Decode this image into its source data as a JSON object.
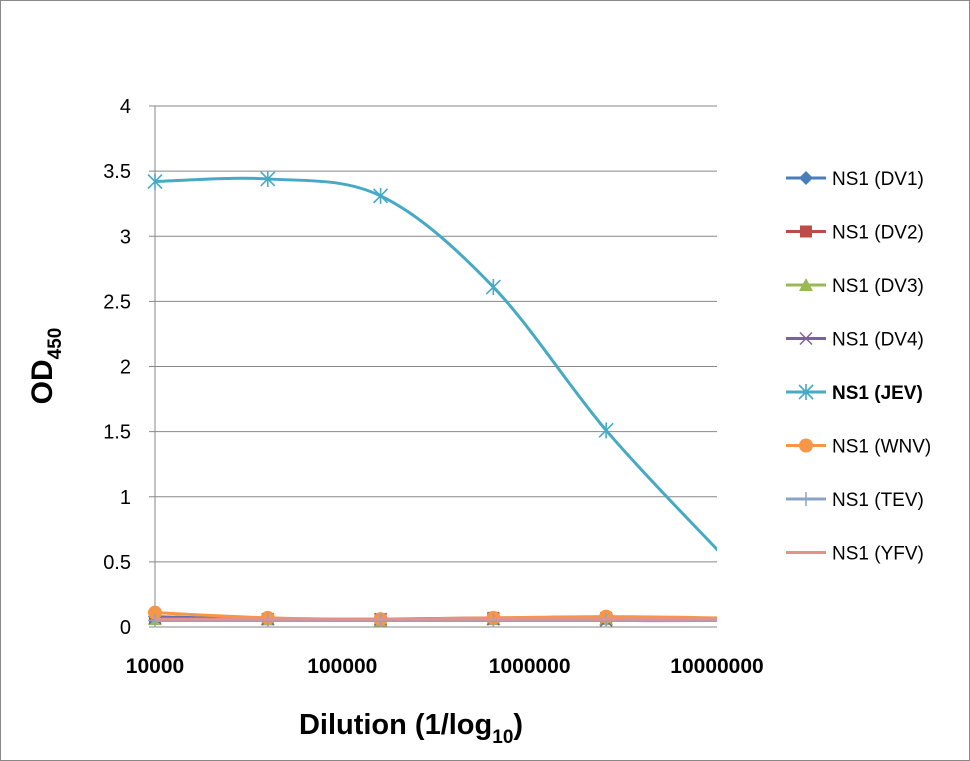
{
  "chart_data": {
    "type": "line",
    "xlabel": "Dilution (1/log",
    "xlabel_sub": "10",
    "xlabel_suffix": ")",
    "ylabel": "OD",
    "ylabel_sub": "450",
    "x_scale": "log",
    "xlim": [
      10000,
      10000000
    ],
    "ylim": [
      0,
      4
    ],
    "x_ticks": [
      "10000",
      "100000",
      "1000000",
      "10000000"
    ],
    "y_ticks": [
      "0",
      "0.5",
      "1",
      "1.5",
      "2",
      "2.5",
      "3",
      "3.5",
      "4"
    ],
    "grid": "horizontal",
    "legend_position": "right",
    "x": [
      10000,
      40000,
      160000,
      640000,
      2560000,
      10240000
    ],
    "series": [
      {
        "name": "NS1 (DV1)",
        "color": "#4a7ebb",
        "marker": "diamond",
        "values": [
          0.08,
          0.06,
          0.06,
          0.06,
          0.06,
          0.05
        ]
      },
      {
        "name": "NS1 (DV2)",
        "color": "#be4b48",
        "marker": "square",
        "values": [
          0.07,
          0.06,
          0.06,
          0.07,
          0.07,
          0.06
        ]
      },
      {
        "name": "NS1 (DV3)",
        "color": "#98b954",
        "marker": "triangle",
        "values": [
          0.06,
          0.06,
          0.05,
          0.06,
          0.06,
          0.05
        ]
      },
      {
        "name": "NS1 (DV4)",
        "color": "#7d60a0",
        "marker": "x",
        "values": [
          0.07,
          0.06,
          0.06,
          0.06,
          0.05,
          0.05
        ]
      },
      {
        "name": "NS1 (JEV)",
        "color": "#46aac5",
        "marker": "star",
        "bold": true,
        "values": [
          3.42,
          3.44,
          3.31,
          2.61,
          1.51,
          0.58
        ]
      },
      {
        "name": "NS1 (WNV)",
        "color": "#f79646",
        "marker": "circle",
        "values": [
          0.11,
          0.07,
          0.06,
          0.07,
          0.08,
          0.07
        ]
      },
      {
        "name": "NS1 (TEV)",
        "color": "#8aa4c8",
        "marker": "plus",
        "values": [
          0.05,
          0.05,
          0.05,
          0.05,
          0.05,
          0.05
        ]
      },
      {
        "name": "NS1 (YFV)",
        "color": "#e6908e",
        "marker": "none",
        "values": [
          0.06,
          0.06,
          0.06,
          0.06,
          0.06,
          0.06
        ]
      }
    ]
  }
}
